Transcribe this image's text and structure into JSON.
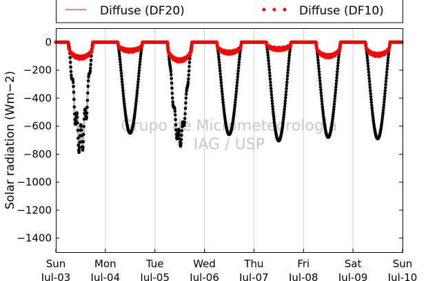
{
  "chart_data": {
    "type": "scatter",
    "title": "",
    "xlabel": "",
    "ylabel": "Solar radiation (Wm−2)",
    "ylim": [
      -1500,
      100
    ],
    "xlim": [
      0,
      7
    ],
    "x_unit": "days since Sun Jul-03 00:00",
    "yticks": [
      0,
      -200,
      -400,
      -600,
      -800,
      -1000,
      -1200,
      -1400
    ],
    "xtick_labels": [
      [
        "Sun",
        "Jul-03"
      ],
      [
        "Mon",
        "Jul-04"
      ],
      [
        "Tue",
        "Jul-05"
      ],
      [
        "Wed",
        "Jul-06"
      ],
      [
        "Thu",
        "Jul-07"
      ],
      [
        "Fri",
        "Jul-08"
      ],
      [
        "Sat",
        "Jul-09"
      ],
      [
        "Sun",
        "Jul-10"
      ]
    ],
    "grid": "vertical",
    "legend": {
      "placement": "top",
      "entries": [
        {
          "label": "Diffuse (DF20)",
          "style": "line",
          "color": "#ff0000"
        },
        {
          "label": "Diffuse (DF10)",
          "style": "dots",
          "color": "#ff0000"
        }
      ]
    },
    "watermark": [
      "Grupo de Micrometeorologia",
      "IAG / USP"
    ],
    "series": [
      {
        "name": "",
        "color": "#000000",
        "days": [
          {
            "start": 0.25,
            "end": 0.75,
            "trough": -700,
            "ripple": 110
          },
          {
            "start": 1.25,
            "end": 1.75,
            "trough": -650,
            "ripple": 0
          },
          {
            "start": 2.25,
            "end": 2.75,
            "trough": -690,
            "ripple": 60
          },
          {
            "start": 3.25,
            "end": 3.75,
            "trough": -660,
            "ripple": 0
          },
          {
            "start": 4.25,
            "end": 4.75,
            "trough": -705,
            "ripple": 0
          },
          {
            "start": 5.25,
            "end": 5.75,
            "trough": -680,
            "ripple": 0
          },
          {
            "start": 6.25,
            "end": 6.75,
            "trough": -690,
            "ripple": 0
          }
        ]
      },
      {
        "name": "Diffuse (DF10)",
        "color": "#ff0000",
        "days": [
          {
            "start": 0.25,
            "end": 0.75,
            "level": -110
          },
          {
            "start": 1.25,
            "end": 1.75,
            "level": -60
          },
          {
            "start": 2.25,
            "end": 2.75,
            "level": -130
          },
          {
            "start": 3.25,
            "end": 3.75,
            "level": -75
          },
          {
            "start": 4.25,
            "end": 4.75,
            "level": -50
          },
          {
            "start": 5.25,
            "end": 5.75,
            "level": -100
          },
          {
            "start": 6.25,
            "end": 6.75,
            "level": -90
          }
        ]
      }
    ]
  }
}
